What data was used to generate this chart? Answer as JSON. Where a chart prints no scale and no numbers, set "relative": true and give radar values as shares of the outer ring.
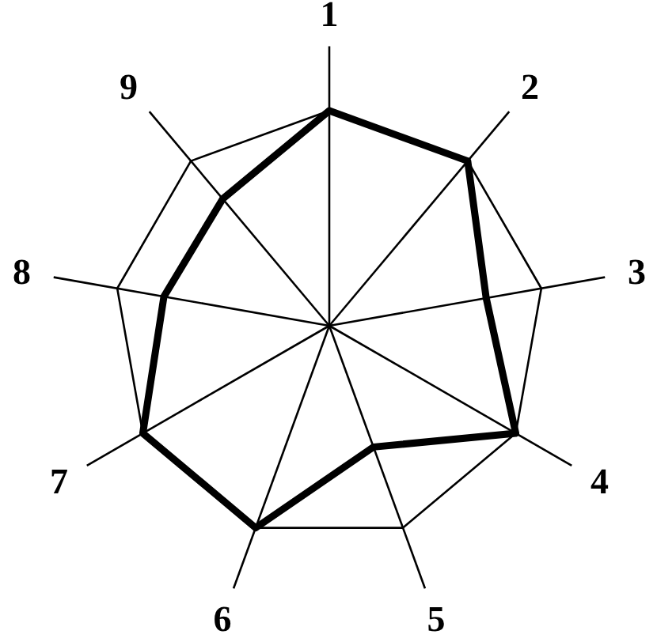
{
  "chart_data": {
    "type": "radar",
    "relative": true,
    "grid": true,
    "categories": [
      "1",
      "2",
      "3",
      "4",
      "5",
      "6",
      "7",
      "8",
      "9"
    ],
    "series": [
      {
        "color": "#000000",
        "values": [
          1,
          1,
          0.74,
          1,
          0.6,
          1,
          1,
          0.78,
          0.77
        ]
      }
    ]
  }
}
